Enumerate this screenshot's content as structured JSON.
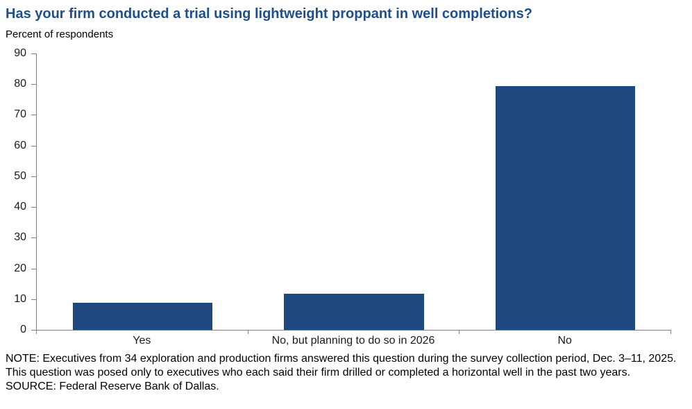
{
  "page": {
    "title": "Has your firm conducted a trial using lightweight proppant in well completions?",
    "subtitle": "Percent of respondents",
    "note": "NOTE: Executives from 34 exploration and production firms answered this question during the survey collection period, Dec. 3–11, 2025. This question was posed only to executives who each said their firm drilled or completed a horizontal well in the past two years.",
    "source": "SOURCE: Federal Reserve Bank of Dallas."
  },
  "colors": {
    "title": "#1e4e8c",
    "bar": "#1f487e",
    "axis": "#808080",
    "text": "#1a1a1a"
  },
  "chart_data": {
    "type": "bar",
    "title": "Has your firm conducted a trial using lightweight proppant in well completions?",
    "ylabel_caption": "Percent of respondents",
    "categories": [
      "Yes",
      "No, but planning to do so in 2026",
      "No"
    ],
    "values": [
      8.8,
      11.8,
      79.4
    ],
    "xlabel": "",
    "ylabel": "",
    "ylim": [
      0,
      90
    ],
    "ytick_step": 10,
    "grid": false,
    "legend_position": "none",
    "bar_color": "#1f487e",
    "note": "NOTE: Executives from 34 exploration and production firms answered this question during the survey collection period, Dec. 3–11, 2025. This question was posed only to executives who each said their firm drilled or completed a horizontal well in the past two years.",
    "source": "SOURCE: Federal Reserve Bank of Dallas."
  }
}
